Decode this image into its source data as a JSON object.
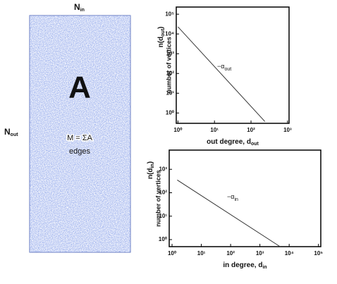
{
  "figure": {
    "matrix_label": "A",
    "top_label": "N",
    "top_label_sub": "in",
    "side_label": "N",
    "side_label_sub": "out",
    "edges_formula": "M = ΣA",
    "edges_word": "edges"
  },
  "chart_data": [
    {
      "type": "line",
      "log_x": true,
      "log_y": true,
      "xlabel": "out degree, d",
      "xlabel_sub": "out",
      "ylabel": "n(d",
      "ylabel_sub": "out",
      "ylabel_end": ")",
      "ylabel2": "number of vertices",
      "annotation": "−α",
      "annotation_sub": "out",
      "x": [
        1,
        240
      ],
      "series": [
        {
          "color": "#333333",
          "values": [
            23000,
            0.37
          ]
        }
      ],
      "xlim": [
        0.9,
        1100
      ],
      "ylim": [
        0.3,
        230000
      ],
      "xticks": [
        {
          "value": 1,
          "label": "10⁰"
        },
        {
          "value": 10,
          "label": "10¹"
        },
        {
          "value": 100,
          "label": "10²"
        },
        {
          "value": 1000,
          "label": "10³"
        }
      ],
      "yticks": [
        {
          "value": 1,
          "label": "10⁰"
        },
        {
          "value": 10,
          "label": "10¹"
        },
        {
          "value": 100,
          "label": "10²"
        },
        {
          "value": 1000,
          "label": "10³"
        },
        {
          "value": 10000,
          "label": "10⁴"
        },
        {
          "value": 100000,
          "label": "10⁵"
        }
      ]
    },
    {
      "type": "line",
      "log_x": true,
      "log_y": true,
      "xlabel": "in degree, d",
      "xlabel_sub": "in",
      "ylabel": "n(d",
      "ylabel_sub": "in",
      "ylabel_end": ")",
      "ylabel2": "number of vertices",
      "annotation": "−α",
      "annotation_sub": "in",
      "x": [
        1.5,
        4900
      ],
      "series": [
        {
          "color": "#333333",
          "values": [
            350,
            0.5
          ]
        }
      ],
      "xlim": [
        0.8,
        120000
      ],
      "ylim": [
        0.5,
        6600
      ],
      "xticks": [
        {
          "value": 1,
          "label": "10⁰"
        },
        {
          "value": 10,
          "label": "10¹"
        },
        {
          "value": 100,
          "label": "10²"
        },
        {
          "value": 1000,
          "label": "10³"
        },
        {
          "value": 10000,
          "label": "10⁴"
        },
        {
          "value": 100000,
          "label": "10⁵"
        }
      ],
      "yticks": [
        {
          "value": 1,
          "label": "10⁰"
        },
        {
          "value": 10,
          "label": "10¹"
        },
        {
          "value": 100,
          "label": "10²"
        },
        {
          "value": 1000,
          "label": "10³"
        }
      ]
    }
  ]
}
